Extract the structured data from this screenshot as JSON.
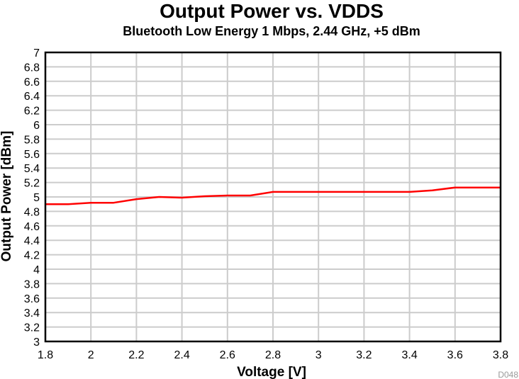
{
  "chart_data": {
    "type": "line",
    "title": "Output Power vs. VDDS",
    "subtitle": "Bluetooth Low Energy 1 Mbps, 2.44 GHz, +5 dBm",
    "xlabel": "Voltage [V]",
    "ylabel": "Output Power [dBm]",
    "xlim": [
      1.8,
      3.8
    ],
    "ylim": [
      3,
      7
    ],
    "xticks": [
      1.8,
      2,
      2.2,
      2.4,
      2.6,
      2.8,
      3,
      3.2,
      3.4,
      3.6,
      3.8
    ],
    "xtick_labels": [
      "1.8",
      "2",
      "2.2",
      "2.4",
      "2.6",
      "2.8",
      "3",
      "3.2",
      "3.4",
      "3.6",
      "3.8"
    ],
    "yticks": [
      3,
      3.2,
      3.4,
      3.6,
      3.8,
      4,
      4.2,
      4.4,
      4.6,
      4.8,
      5,
      5.2,
      5.4,
      5.6,
      5.8,
      6,
      6.2,
      6.4,
      6.6,
      6.8,
      7
    ],
    "ytick_labels": [
      "3",
      "3.2",
      "3.4",
      "3.6",
      "3.8",
      "4",
      "4.2",
      "4.4",
      "4.6",
      "4.8",
      "5",
      "5.2",
      "5.4",
      "5.6",
      "5.8",
      "6",
      "6.2",
      "6.4",
      "6.6",
      "6.8",
      "7"
    ],
    "grid": true,
    "series": [
      {
        "color": "#ff0000",
        "x": [
          1.8,
          1.9,
          2.0,
          2.1,
          2.2,
          2.3,
          2.4,
          2.5,
          2.6,
          2.7,
          2.8,
          2.9,
          3.0,
          3.1,
          3.2,
          3.3,
          3.4,
          3.5,
          3.6,
          3.7,
          3.8
        ],
        "y": [
          4.9,
          4.9,
          4.92,
          4.92,
          4.97,
          5.0,
          4.99,
          5.01,
          5.02,
          5.02,
          5.07,
          5.07,
          5.07,
          5.07,
          5.07,
          5.07,
          5.07,
          5.09,
          5.13,
          5.13,
          5.13
        ]
      }
    ],
    "figure_id": "D048"
  }
}
